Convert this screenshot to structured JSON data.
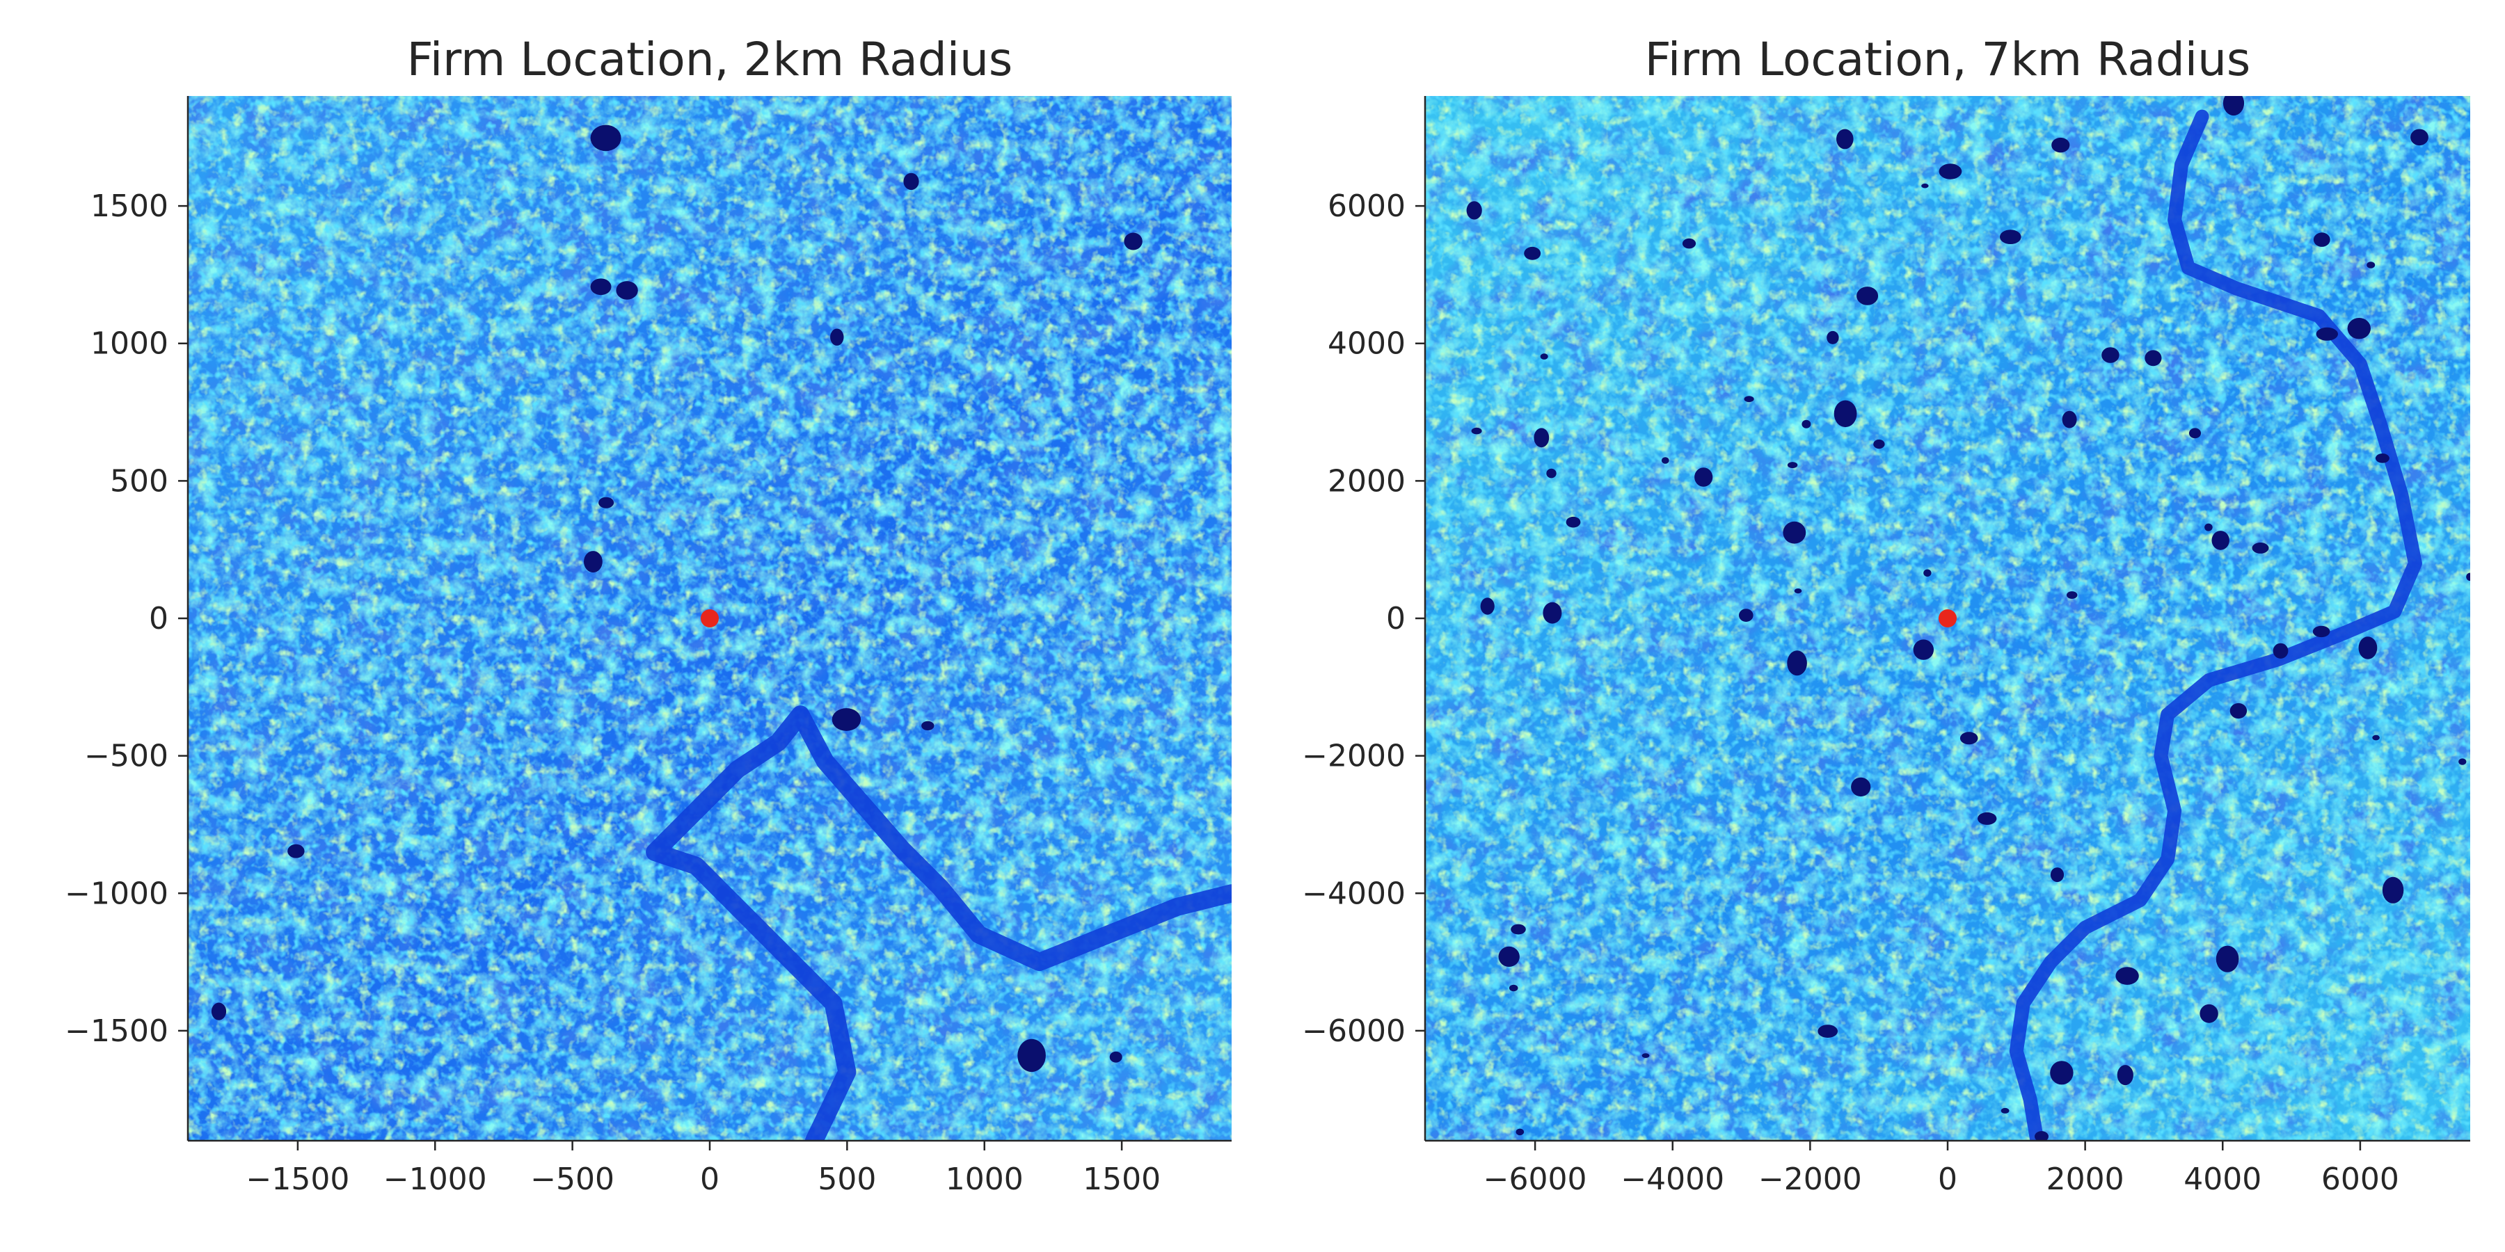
{
  "chart_data": [
    {
      "type": "heatmap",
      "title": "Firm Location, 2km Radius",
      "xlabel": "",
      "ylabel": "",
      "xlim": [
        -1900,
        1900
      ],
      "ylim": [
        -1900,
        1900
      ],
      "xticks": [
        -1500,
        -1000,
        -500,
        0,
        500,
        1000,
        1500
      ],
      "yticks": [
        1500,
        1000,
        500,
        0,
        -500,
        -1000,
        -1500
      ],
      "xtick_labels": [
        "−1500",
        "−1000",
        "−500",
        "0",
        "500",
        "1000",
        "1500"
      ],
      "ytick_labels": [
        "1500",
        "1000",
        "500",
        "0",
        "−500",
        "−1000",
        "−1500"
      ],
      "grid": false,
      "colormap": "jet",
      "marker": {
        "x": 0,
        "y": 0,
        "color": "#e8261c"
      },
      "river": [
        [
          380,
          -1900
        ],
        [
          500,
          -1650
        ],
        [
          450,
          -1400
        ],
        [
          200,
          -1150
        ],
        [
          -50,
          -900
        ],
        [
          -200,
          -850
        ],
        [
          -50,
          -700
        ],
        [
          100,
          -550
        ],
        [
          250,
          -450
        ],
        [
          330,
          -350
        ],
        [
          420,
          -520
        ],
        [
          560,
          -680
        ],
        [
          700,
          -840
        ],
        [
          840,
          -980
        ],
        [
          980,
          -1150
        ],
        [
          1200,
          -1250
        ],
        [
          1450,
          -1150
        ],
        [
          1700,
          -1050
        ],
        [
          1900,
          -1000
        ]
      ]
    },
    {
      "type": "heatmap",
      "title": "Firm Location, 7km Radius",
      "xlabel": "",
      "ylabel": "",
      "xlim": [
        -7600,
        7600
      ],
      "ylim": [
        -7600,
        7600
      ],
      "xticks": [
        -6000,
        -4000,
        -2000,
        0,
        2000,
        4000,
        6000
      ],
      "yticks": [
        6000,
        4000,
        2000,
        0,
        -2000,
        -4000,
        -6000
      ],
      "xtick_labels": [
        "−6000",
        "−4000",
        "−2000",
        "0",
        "2000",
        "4000",
        "6000"
      ],
      "ytick_labels": [
        "6000",
        "4000",
        "2000",
        "0",
        "−2000",
        "−4000",
        "−6000"
      ],
      "grid": false,
      "colormap": "jet",
      "marker": {
        "x": 0,
        "y": 0,
        "color": "#e8261c"
      },
      "river": [
        [
          3700,
          7300
        ],
        [
          3400,
          6600
        ],
        [
          3300,
          5800
        ],
        [
          3500,
          5100
        ],
        [
          4200,
          4800
        ],
        [
          5400,
          4400
        ],
        [
          6000,
          3700
        ],
        [
          6300,
          2800
        ],
        [
          6600,
          1800
        ],
        [
          6800,
          800
        ],
        [
          6500,
          100
        ],
        [
          5800,
          -200
        ],
        [
          4800,
          -600
        ],
        [
          3800,
          -900
        ],
        [
          3200,
          -1400
        ],
        [
          3100,
          -2000
        ],
        [
          3300,
          -2800
        ],
        [
          3200,
          -3500
        ],
        [
          2800,
          -4100
        ],
        [
          2000,
          -4500
        ],
        [
          1500,
          -5000
        ],
        [
          1100,
          -5600
        ],
        [
          1000,
          -6300
        ],
        [
          1200,
          -7000
        ],
        [
          1300,
          -7600
        ]
      ]
    }
  ]
}
